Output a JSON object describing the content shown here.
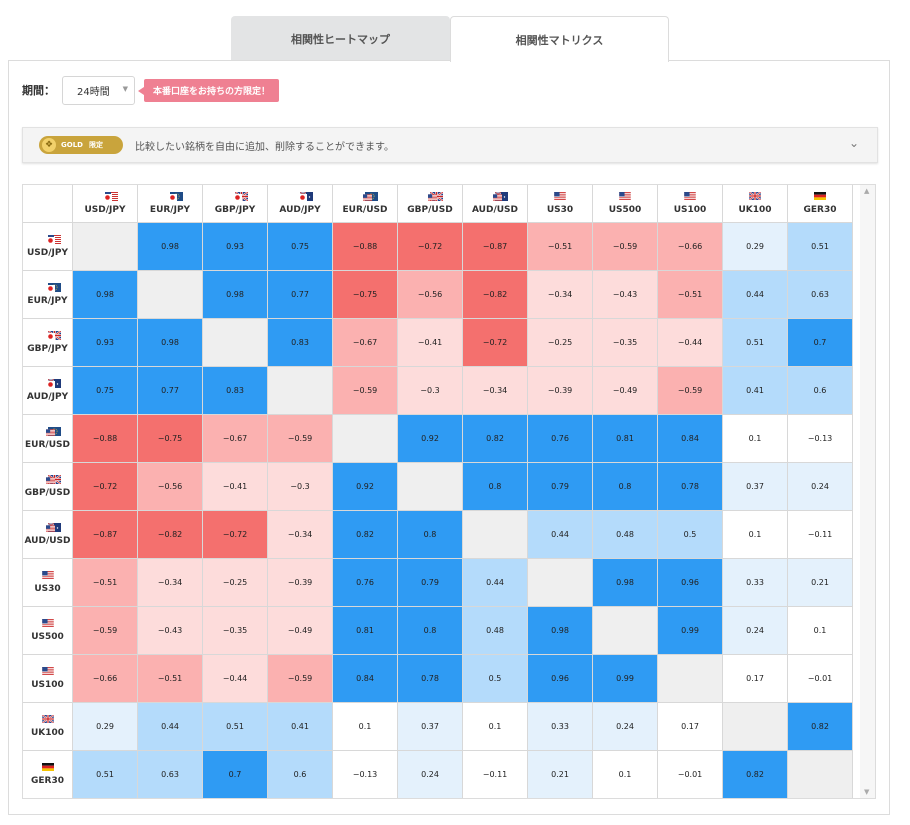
{
  "tabs": [
    {
      "label": "相関性ヒートマップ",
      "active": false
    },
    {
      "label": "相関性マトリクス",
      "active": true
    }
  ],
  "period": {
    "label": "期間：",
    "value": "24時間"
  },
  "live_badge": "本番口座をお持ちの方限定！",
  "gold": {
    "badge": "GOLD",
    "badge_sub": "限定",
    "text": "比較したい銘柄を自由に追加、削除することができます。"
  },
  "colors": {
    "strong_positive": "#2f9bf3",
    "moderate_positive": "#b4dbfb",
    "weak_positive": "#e4f1fc",
    "strong_negative": "#f4706e",
    "moderate_negative": "#fbb1b0",
    "weak_negative": "#fddcdb",
    "neutral": "#ffffff",
    "diagonal": "#efefef"
  },
  "symbols": [
    {
      "name": "USD/JPY",
      "flags": [
        "us",
        "jp"
      ]
    },
    {
      "name": "EUR/JPY",
      "flags": [
        "eu",
        "jp"
      ]
    },
    {
      "name": "GBP/JPY",
      "flags": [
        "uk",
        "jp"
      ]
    },
    {
      "name": "AUD/JPY",
      "flags": [
        "au",
        "jp"
      ]
    },
    {
      "name": "EUR/USD",
      "flags": [
        "eu",
        "us"
      ]
    },
    {
      "name": "GBP/USD",
      "flags": [
        "uk",
        "us"
      ]
    },
    {
      "name": "AUD/USD",
      "flags": [
        "au",
        "us"
      ]
    },
    {
      "name": "US30",
      "flags": [
        "us"
      ]
    },
    {
      "name": "US500",
      "flags": [
        "us"
      ]
    },
    {
      "name": "US100",
      "flags": [
        "us"
      ]
    },
    {
      "name": "UK100",
      "flags": [
        "uk"
      ]
    },
    {
      "name": "GER30",
      "flags": [
        "de"
      ]
    }
  ],
  "matrix": [
    [
      null,
      "0.98",
      "0.93",
      "0.75",
      "−0.88",
      "−0.72",
      "−0.87",
      "−0.51",
      "−0.59",
      "−0.66",
      "0.29",
      "0.51"
    ],
    [
      "0.98",
      null,
      "0.98",
      "0.77",
      "−0.75",
      "−0.56",
      "−0.82",
      "−0.34",
      "−0.43",
      "−0.51",
      "0.44",
      "0.63"
    ],
    [
      "0.93",
      "0.98",
      null,
      "0.83",
      "−0.67",
      "−0.41",
      "−0.72",
      "−0.25",
      "−0.35",
      "−0.44",
      "0.51",
      "0.7"
    ],
    [
      "0.75",
      "0.77",
      "0.83",
      null,
      "−0.59",
      "−0.3",
      "−0.34",
      "−0.39",
      "−0.49",
      "−0.59",
      "0.41",
      "0.6"
    ],
    [
      "−0.88",
      "−0.75",
      "−0.67",
      "−0.59",
      null,
      "0.92",
      "0.82",
      "0.76",
      "0.81",
      "0.84",
      "0.1",
      "−0.13"
    ],
    [
      "−0.72",
      "−0.56",
      "−0.41",
      "−0.3",
      "0.92",
      null,
      "0.8",
      "0.79",
      "0.8",
      "0.78",
      "0.37",
      "0.24"
    ],
    [
      "−0.87",
      "−0.82",
      "−0.72",
      "−0.34",
      "0.82",
      "0.8",
      null,
      "0.44",
      "0.48",
      "0.5",
      "0.1",
      "−0.11"
    ],
    [
      "−0.51",
      "−0.34",
      "−0.25",
      "−0.39",
      "0.76",
      "0.79",
      "0.44",
      null,
      "0.98",
      "0.96",
      "0.33",
      "0.21"
    ],
    [
      "−0.59",
      "−0.43",
      "−0.35",
      "−0.49",
      "0.81",
      "0.8",
      "0.48",
      "0.98",
      null,
      "0.99",
      "0.24",
      "0.1"
    ],
    [
      "−0.66",
      "−0.51",
      "−0.44",
      "−0.59",
      "0.84",
      "0.78",
      "0.5",
      "0.96",
      "0.99",
      null,
      "0.17",
      "−0.01"
    ],
    [
      "0.29",
      "0.44",
      "0.51",
      "0.41",
      "0.1",
      "0.37",
      "0.1",
      "0.33",
      "0.24",
      "0.17",
      null,
      "0.82"
    ],
    [
      "0.51",
      "0.63",
      "0.7",
      "0.6",
      "−0.13",
      "0.24",
      "−0.11",
      "0.21",
      "0.1",
      "−0.01",
      "0.82",
      null
    ]
  ]
}
